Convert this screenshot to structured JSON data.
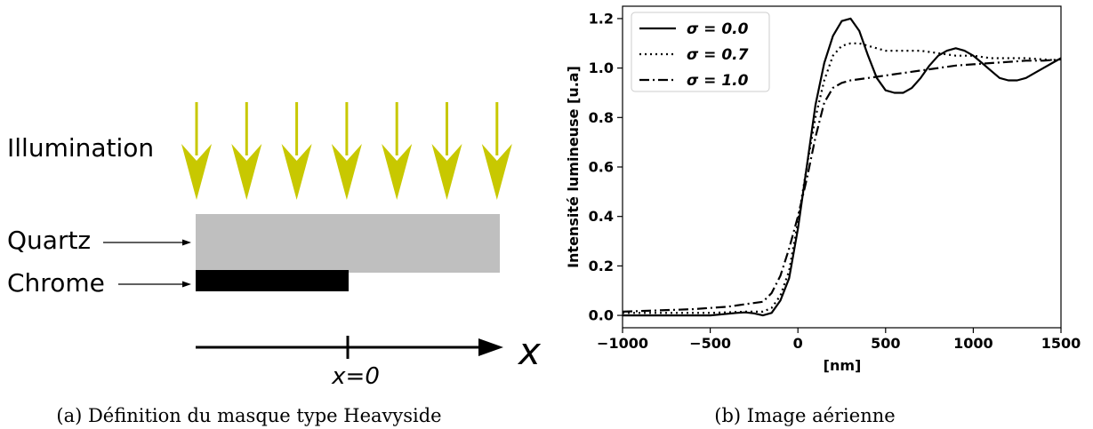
{
  "figure_a": {
    "caption": "(a) Définition du masque type Heavyside",
    "labels": {
      "illumination": "Illumination",
      "quartz": "Quartz",
      "chrome": "Chrome",
      "x_zero": "x=0",
      "x_axis": "x"
    },
    "colors": {
      "arrow": "#c8c800",
      "quartz": "#bfbfbf",
      "chrome": "#000000"
    }
  },
  "figure_b": {
    "caption": "(b) Image aérienne"
  },
  "chart_data": {
    "type": "line",
    "title": "",
    "xlabel": "[nm]",
    "ylabel": "Intensité lumineuse [u.a]",
    "xlim": [
      -1000,
      1500
    ],
    "ylim": [
      -0.05,
      1.25
    ],
    "xticks": [
      -1000,
      -500,
      0,
      500,
      1000,
      1500
    ],
    "yticks": [
      0.0,
      0.2,
      0.4,
      0.6,
      0.8,
      1.0,
      1.2
    ],
    "legend_position": "top-left",
    "grid": false,
    "series": [
      {
        "name": "σ = 0.0",
        "style": "solid",
        "x": [
          -1000,
          -500,
          -350,
          -300,
          -250,
          -200,
          -150,
          -100,
          -50,
          0,
          50,
          100,
          150,
          200,
          250,
          300,
          350,
          400,
          450,
          500,
          550,
          600,
          650,
          700,
          750,
          800,
          850,
          900,
          950,
          1000,
          1050,
          1100,
          1150,
          1200,
          1250,
          1300,
          1350,
          1400,
          1450,
          1500
        ],
        "y": [
          0.0,
          0.0,
          0.01,
          0.012,
          0.008,
          0.0,
          0.01,
          0.06,
          0.15,
          0.35,
          0.6,
          0.85,
          1.02,
          1.13,
          1.19,
          1.2,
          1.15,
          1.05,
          0.96,
          0.91,
          0.9,
          0.9,
          0.92,
          0.96,
          1.01,
          1.05,
          1.07,
          1.08,
          1.07,
          1.05,
          1.02,
          0.99,
          0.96,
          0.95,
          0.95,
          0.96,
          0.98,
          1.0,
          1.02,
          1.04
        ]
      },
      {
        "name": "σ = 0.7",
        "style": "dotted",
        "x": [
          -1000,
          -500,
          -300,
          -200,
          -150,
          -100,
          -50,
          0,
          50,
          100,
          150,
          200,
          250,
          300,
          350,
          400,
          500,
          600,
          700,
          800,
          900,
          1000,
          1100,
          1200,
          1300,
          1400,
          1500
        ],
        "y": [
          0.01,
          0.01,
          0.015,
          0.015,
          0.03,
          0.08,
          0.18,
          0.38,
          0.6,
          0.8,
          0.95,
          1.05,
          1.09,
          1.1,
          1.1,
          1.09,
          1.07,
          1.07,
          1.07,
          1.06,
          1.05,
          1.05,
          1.04,
          1.04,
          1.04,
          1.035,
          1.03
        ]
      },
      {
        "name": "σ = 1.0",
        "style": "dashdot",
        "x": [
          -1000,
          -800,
          -600,
          -400,
          -300,
          -200,
          -150,
          -100,
          -50,
          0,
          50,
          100,
          150,
          200,
          250,
          300,
          400,
          500,
          600,
          700,
          800,
          900,
          1000,
          1100,
          1200,
          1300,
          1400,
          1500
        ],
        "y": [
          0.015,
          0.02,
          0.025,
          0.035,
          0.045,
          0.055,
          0.09,
          0.16,
          0.27,
          0.4,
          0.55,
          0.72,
          0.86,
          0.92,
          0.94,
          0.95,
          0.96,
          0.97,
          0.98,
          0.99,
          1.0,
          1.01,
          1.015,
          1.02,
          1.025,
          1.03,
          1.03,
          1.035
        ]
      }
    ]
  }
}
